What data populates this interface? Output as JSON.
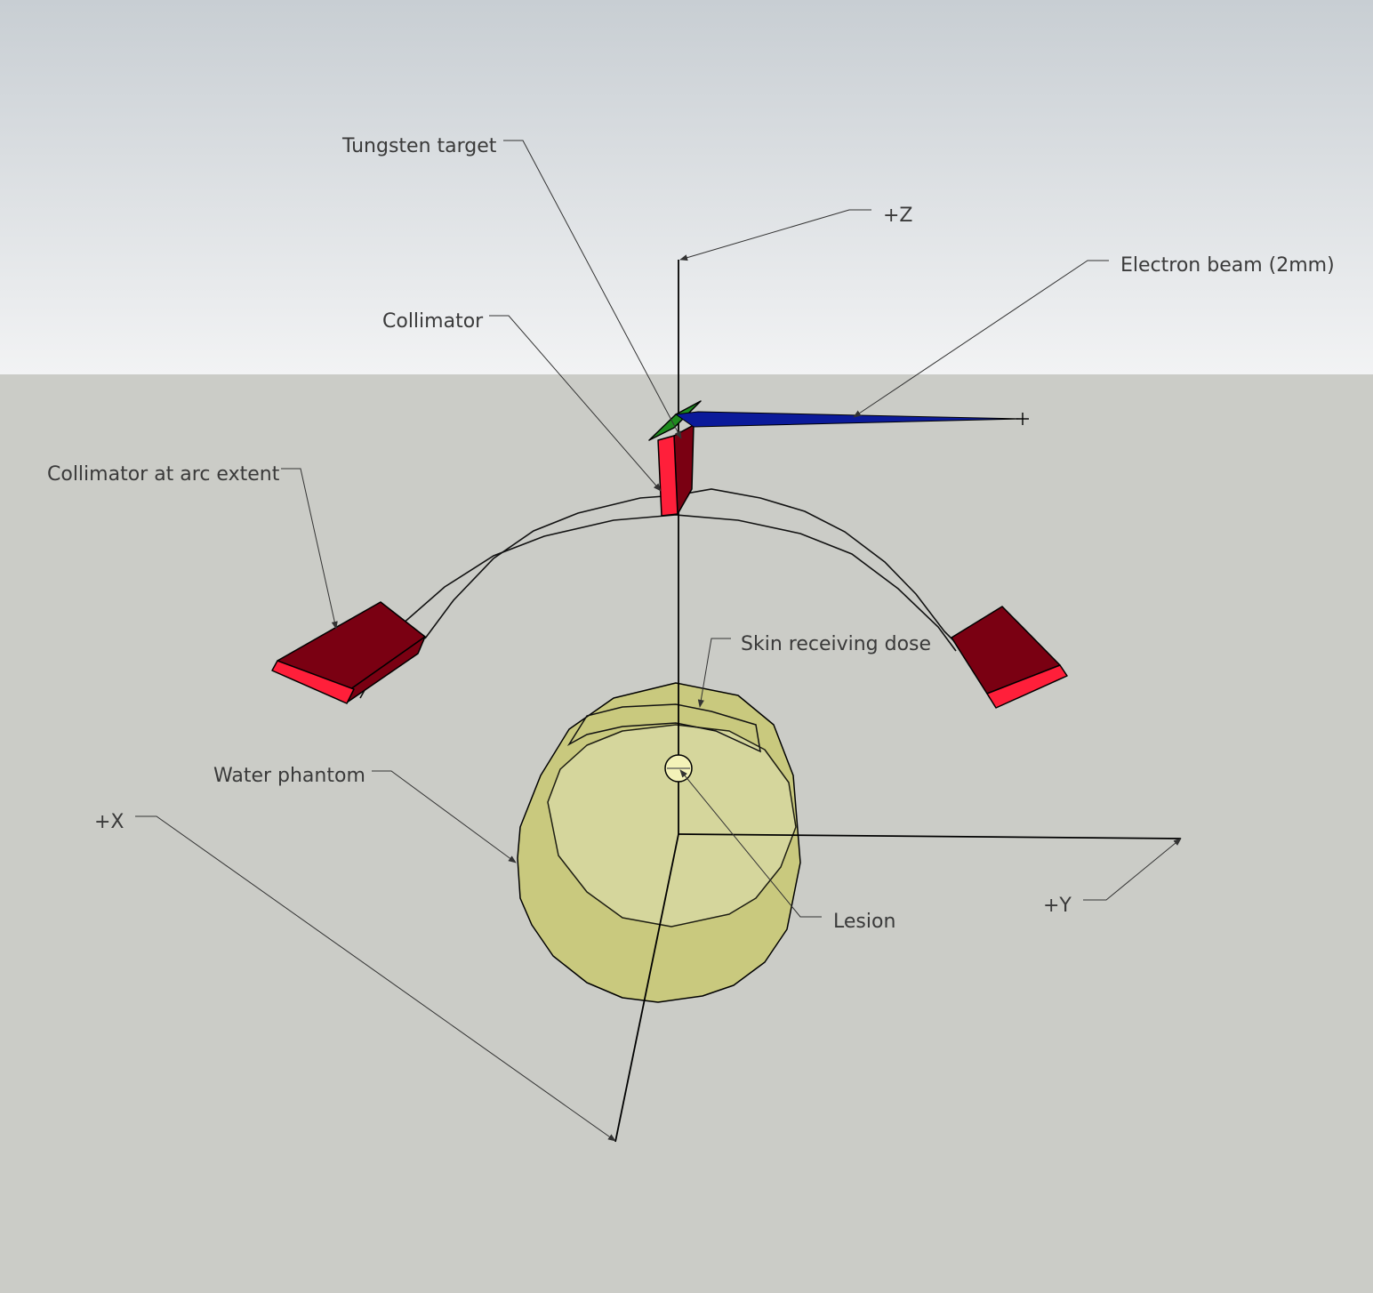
{
  "labels": {
    "tungsten_target": "Tungsten target",
    "plus_z": "+Z",
    "electron_beam": "Electron beam (2mm)",
    "collimator": "Collimator",
    "collimator_arc": "Collimator at arc extent",
    "skin_dose": "Skin receiving dose",
    "water_phantom": "Water phantom",
    "plus_x": "+X",
    "lesion": "Lesion",
    "plus_y": "+Y"
  },
  "colors": {
    "sky_top": "#c8ced3",
    "sky_bottom": "#f2f3f4",
    "ground": "#cbccc7",
    "collimator_face": "#ff1f3a",
    "collimator_side": "#7a0012",
    "electron_beam": "#0b1a9a",
    "tungsten_target": "#1f8a1f",
    "phantom_top": "#d8d9a2",
    "phantom_side": "#c9c97e",
    "lesion": "#f3f2b8"
  }
}
